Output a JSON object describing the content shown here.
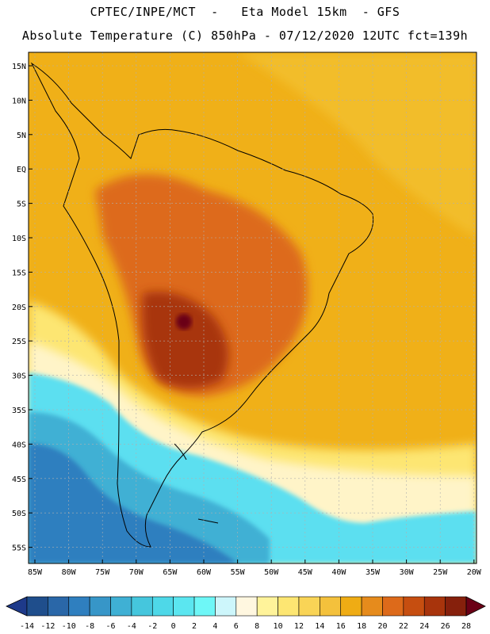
{
  "header": {
    "line1": "CPTEC/INPE/MCT  -   Eta Model 15km  - GFS",
    "line2": "Absolute Temperature (C) 850hPa - 07/12/2020 12UTC fct=139h"
  },
  "lat_labels": [
    "15N",
    "10N",
    "5N",
    "EQ",
    "5S",
    "10S",
    "15S",
    "20S",
    "25S",
    "30S",
    "35S",
    "40S",
    "45S",
    "50S",
    "55S"
  ],
  "lon_labels": [
    "85W",
    "80W",
    "75W",
    "70W",
    "65W",
    "60W",
    "55W",
    "50W",
    "45W",
    "40W",
    "35W",
    "30W",
    "25W",
    "20W"
  ],
  "colorbar": {
    "labels": [
      "-14",
      "-12",
      "-10",
      "-8",
      "-6",
      "-4",
      "-2",
      "0",
      "2",
      "4",
      "6",
      "8",
      "10",
      "12",
      "14",
      "16",
      "18",
      "20",
      "22",
      "24",
      "26",
      "28"
    ],
    "under_color": "#1e3a8a",
    "over_color": "#6b0016",
    "colors": [
      "#1f4e8c",
      "#2a67a8",
      "#2f7fbf",
      "#3796c8",
      "#3fb0d4",
      "#45c6dd",
      "#4ed8e8",
      "#5be6f0",
      "#6ef7f7",
      "#cdf6fb",
      "#fff7e0",
      "#fff39a",
      "#fde672",
      "#f9d456",
      "#f4c13c",
      "#efac14",
      "#e68b1c",
      "#dd6a1a",
      "#c64e10",
      "#a8340c",
      "#86200c"
    ]
  },
  "colors": {
    "ocean_warm": "#f0b018",
    "land_warm": "#e89a1f",
    "hot": "#c8581a",
    "very_hot": "#9c3412",
    "cold": "#5bdff0",
    "very_cold": "#3795c7"
  }
}
